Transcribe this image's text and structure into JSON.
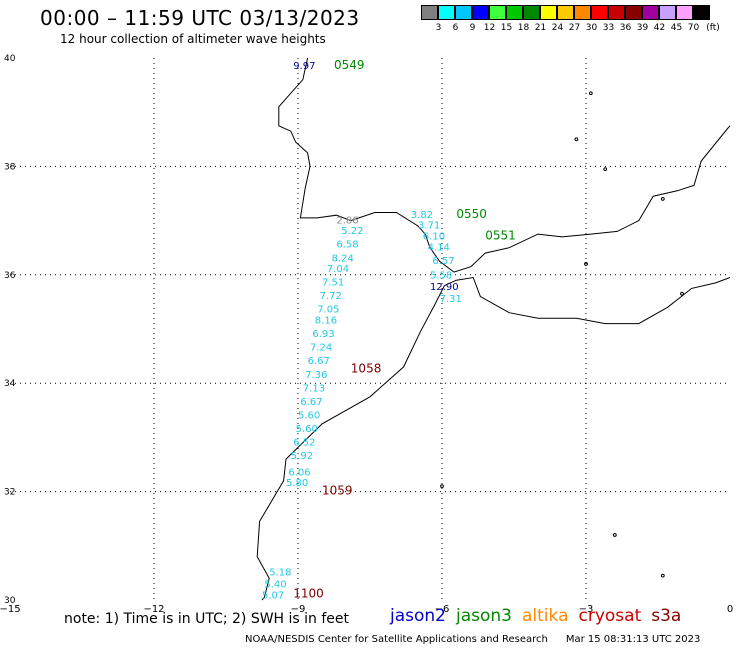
{
  "title": "00:00 – 11:59 UTC 03/13/2023",
  "subtitle": "12 hour collection of altimeter wave heights",
  "map": {
    "lon_range": [
      -15,
      0
    ],
    "lat_range": [
      30,
      40
    ],
    "lon_ticks": [
      {
        "value": -15,
        "label": "−15"
      },
      {
        "value": -12,
        "label": "−12"
      },
      {
        "value": -9,
        "label": "−9"
      },
      {
        "value": -6,
        "label": "−6"
      },
      {
        "value": -3,
        "label": "−3"
      },
      {
        "value": 0,
        "label": "0"
      }
    ],
    "lat_ticks": [
      {
        "value": 30,
        "label": "30"
      },
      {
        "value": 32,
        "label": "32"
      },
      {
        "value": 34,
        "label": "34"
      },
      {
        "value": 36,
        "label": "36"
      },
      {
        "value": 38,
        "label": "38"
      },
      {
        "value": 40,
        "label": "40"
      }
    ],
    "grid": "dotted",
    "colors": {
      "coast": "#000000",
      "grid": "#000000",
      "jason3": "#008800",
      "cryosat": "#800000",
      "cyan": "#22c8e6",
      "gray": "#888888",
      "navy": "#000088"
    }
  },
  "colorbar": {
    "unit": "(ft)",
    "cells": [
      {
        "color": "#808080",
        "label": "3"
      },
      {
        "color": "#00ffff",
        "label": "6"
      },
      {
        "color": "#00c8ff",
        "label": "9"
      },
      {
        "color": "#0000ff",
        "label": "12"
      },
      {
        "color": "#40ff40",
        "label": "15"
      },
      {
        "color": "#00c800",
        "label": "18"
      },
      {
        "color": "#008800",
        "label": "21"
      },
      {
        "color": "#ffff00",
        "label": "24"
      },
      {
        "color": "#ffc800",
        "label": "27"
      },
      {
        "color": "#ff8800",
        "label": "30"
      },
      {
        "color": "#ff0000",
        "label": "33"
      },
      {
        "color": "#c80000",
        "label": "36"
      },
      {
        "color": "#880000",
        "label": "39"
      },
      {
        "color": "#a000a0",
        "label": "42"
      },
      {
        "color": "#c8a0ff",
        "label": "45"
      },
      {
        "color": "#ffa0ff",
        "label": "70"
      },
      {
        "color": "#000000",
        "label": ""
      }
    ]
  },
  "pass_labels": [
    {
      "text": "0549",
      "lon": -8.25,
      "lat": 39.8,
      "color": "#008800"
    },
    {
      "text": "0550",
      "lon": -5.7,
      "lat": 37.05,
      "color": "#008800"
    },
    {
      "text": "0551",
      "lon": -5.1,
      "lat": 36.65,
      "color": "#008800"
    },
    {
      "text": "1058",
      "lon": -7.9,
      "lat": 34.2,
      "color": "#800000"
    },
    {
      "text": "1059",
      "lon": -8.5,
      "lat": 31.95,
      "color": "#800000"
    },
    {
      "text": "1100",
      "lon": -9.1,
      "lat": 30.05,
      "color": "#800000"
    }
  ],
  "wave_heights": [
    {
      "text": "9.97",
      "lon": -9.1,
      "lat": 39.8,
      "color": "#000088"
    },
    {
      "text": "2.86",
      "lon": -8.2,
      "lat": 36.95,
      "color": "#888888"
    },
    {
      "text": "5.22",
      "lon": -8.1,
      "lat": 36.75,
      "color": "#22c8e6"
    },
    {
      "text": "6.58",
      "lon": -8.2,
      "lat": 36.5,
      "color": "#22c8e6"
    },
    {
      "text": "8.24",
      "lon": -8.3,
      "lat": 36.25,
      "color": "#22c8e6"
    },
    {
      "text": "7.04",
      "lon": -8.4,
      "lat": 36.05,
      "color": "#22c8e6"
    },
    {
      "text": "7.51",
      "lon": -8.5,
      "lat": 35.8,
      "color": "#22c8e6"
    },
    {
      "text": "7.72",
      "lon": -8.55,
      "lat": 35.55,
      "color": "#22c8e6"
    },
    {
      "text": "7.05",
      "lon": -8.6,
      "lat": 35.3,
      "color": "#22c8e6"
    },
    {
      "text": "8.16",
      "lon": -8.65,
      "lat": 35.1,
      "color": "#22c8e6"
    },
    {
      "text": "6.93",
      "lon": -8.7,
      "lat": 34.85,
      "color": "#22c8e6"
    },
    {
      "text": "7.24",
      "lon": -8.75,
      "lat": 34.6,
      "color": "#22c8e6"
    },
    {
      "text": "6.67",
      "lon": -8.8,
      "lat": 34.35,
      "color": "#22c8e6"
    },
    {
      "text": "7.36",
      "lon": -8.85,
      "lat": 34.1,
      "color": "#22c8e6"
    },
    {
      "text": "7.13",
      "lon": -8.9,
      "lat": 33.85,
      "color": "#22c8e6"
    },
    {
      "text": "6.67",
      "lon": -8.95,
      "lat": 33.6,
      "color": "#22c8e6"
    },
    {
      "text": "5.60",
      "lon": -9.0,
      "lat": 33.35,
      "color": "#22c8e6"
    },
    {
      "text": "5.60",
      "lon": -9.05,
      "lat": 33.1,
      "color": "#22c8e6"
    },
    {
      "text": "6.52",
      "lon": -9.1,
      "lat": 32.85,
      "color": "#22c8e6"
    },
    {
      "text": "5.92",
      "lon": -9.15,
      "lat": 32.6,
      "color": "#22c8e6"
    },
    {
      "text": "6.06",
      "lon": -9.2,
      "lat": 32.3,
      "color": "#22c8e6"
    },
    {
      "text": "5.80",
      "lon": -9.25,
      "lat": 32.1,
      "color": "#22c8e6"
    },
    {
      "text": "3.82",
      "lon": -6.65,
      "lat": 37.05,
      "color": "#22c8e6"
    },
    {
      "text": "3.71",
      "lon": -6.5,
      "lat": 36.85,
      "color": "#22c8e6"
    },
    {
      "text": "6.10",
      "lon": -6.4,
      "lat": 36.65,
      "color": "#22c8e6"
    },
    {
      "text": "4.14",
      "lon": -6.3,
      "lat": 36.45,
      "color": "#22c8e6"
    },
    {
      "text": "6.57",
      "lon": -6.2,
      "lat": 36.2,
      "color": "#22c8e6"
    },
    {
      "text": "5.58",
      "lon": -6.25,
      "lat": 35.93,
      "color": "#22c8e6"
    },
    {
      "text": "12.90",
      "lon": -6.25,
      "lat": 35.72,
      "color": "#000088"
    },
    {
      "text": "7.31",
      "lon": -6.05,
      "lat": 35.5,
      "color": "#22c8e6"
    },
    {
      "text": "5.18",
      "lon": -9.6,
      "lat": 30.45,
      "color": "#22c8e6"
    },
    {
      "text": "5.40",
      "lon": -9.7,
      "lat": 30.23,
      "color": "#22c8e6"
    },
    {
      "text": "5.07",
      "lon": -9.75,
      "lat": 30.03,
      "color": "#22c8e6"
    }
  ],
  "footer": {
    "note": "note:  1) Time is in UTC;  2) SWH is in feet",
    "satellites": [
      {
        "name": "jason2",
        "color": "#0000cc"
      },
      {
        "name": "jason3",
        "color": "#008800"
      },
      {
        "name": "altika",
        "color": "#ff8800"
      },
      {
        "name": "cryosat",
        "color": "#cc0000"
      },
      {
        "name": "s3a",
        "color": "#880000"
      }
    ],
    "credit": "NOAA/NESDIS Center for Satellite Applications and Research",
    "timestamp": "Mar 15 08:31:13 UTC 2023"
  }
}
